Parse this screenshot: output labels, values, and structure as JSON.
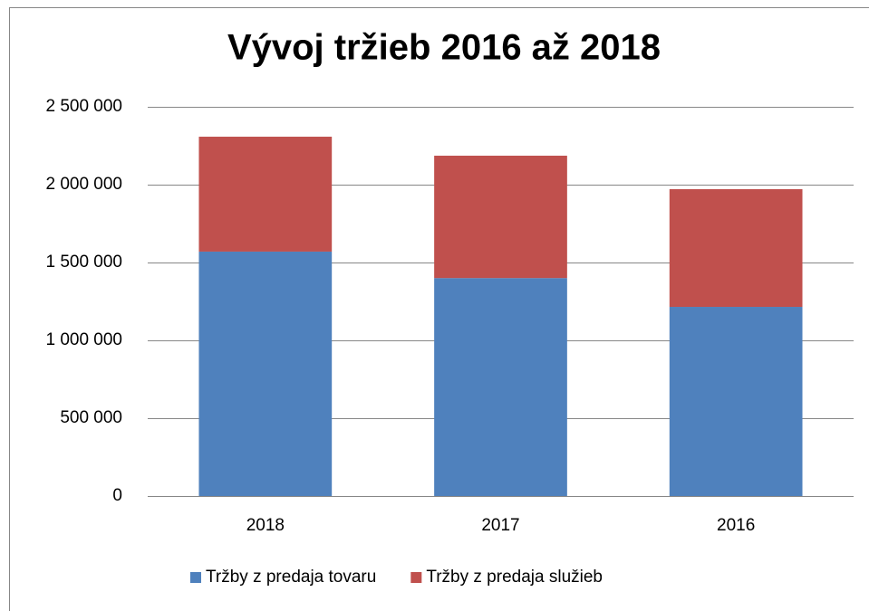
{
  "chart_data": {
    "type": "stacked_bar",
    "title": "Vývoj tržieb 2016 až 2018",
    "categories": [
      "2018",
      "2017",
      "2016"
    ],
    "series": [
      {
        "name": "Tržby z predaja tovaru",
        "color": "#4f81bd",
        "values": [
          1570000,
          1400000,
          1215000
        ]
      },
      {
        "name": "Tržby z predaja služieb",
        "color": "#c0504d",
        "values": [
          738000,
          786000,
          756000
        ]
      }
    ],
    "ylim": [
      0,
      2500000
    ],
    "yticks": [
      0,
      {
        "value": 500000,
        "label": "500 000"
      },
      {
        "value": 1000000,
        "label": "1 000 000"
      },
      {
        "value": 1500000,
        "label": "1 500 000"
      },
      {
        "value": 2000000,
        "label": "2 000 000"
      },
      {
        "value": 2500000,
        "label": "2 500 000"
      }
    ],
    "grid": true,
    "legend": "bottom"
  }
}
